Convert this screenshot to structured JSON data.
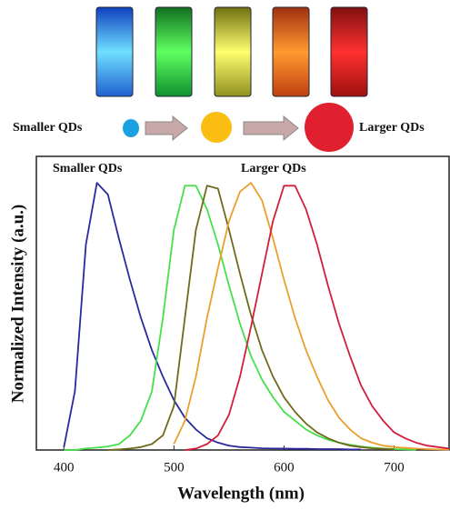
{
  "schematic": {
    "left_label": "Smaller QDs",
    "right_label": "Larger QDs"
  },
  "chart_data": {
    "type": "line",
    "x_label": "Wavelength (nm)",
    "y_label": "Normalized Intensity (a.u.)",
    "annotations": [
      "Smaller QDs",
      "Larger QDs"
    ],
    "xlim": [
      375,
      750
    ],
    "ylim": [
      0,
      1
    ],
    "xticks": [
      400,
      500,
      600,
      700
    ],
    "grid": false,
    "x": [
      390,
      400,
      410,
      420,
      430,
      440,
      450,
      460,
      470,
      480,
      490,
      500,
      510,
      520,
      530,
      540,
      550,
      560,
      570,
      580,
      590,
      600,
      610,
      620,
      630,
      640,
      650,
      660,
      670,
      680,
      690,
      700,
      710,
      720,
      730,
      740,
      750
    ],
    "series": [
      {
        "color": "#2b2a9c",
        "values": [
          null,
          0.01,
          0.2,
          0.7,
          0.91,
          0.87,
          0.72,
          0.58,
          0.45,
          0.34,
          0.25,
          0.17,
          0.11,
          0.07,
          0.04,
          0.025,
          0.015,
          0.01,
          0.008,
          0.006,
          0.005,
          0.005,
          0.004,
          0.004,
          0.003,
          0.003,
          0.003,
          0.002,
          0.002,
          null,
          null,
          null,
          null,
          null,
          null,
          null,
          null
        ]
      },
      {
        "color": "#45e04a",
        "values": [
          null,
          0,
          0,
          0.005,
          0.008,
          0.012,
          0.02,
          0.05,
          0.1,
          0.2,
          0.45,
          0.75,
          0.9,
          0.9,
          0.82,
          0.7,
          0.56,
          0.43,
          0.32,
          0.24,
          0.18,
          0.13,
          0.1,
          0.07,
          0.05,
          0.035,
          0.025,
          0.018,
          0.012,
          0.008,
          0.005,
          0.003,
          0.002,
          0.001,
          null,
          null,
          null
        ]
      },
      {
        "color": "#6e6a1c",
        "values": [
          null,
          null,
          null,
          null,
          null,
          0,
          0.002,
          0.005,
          0.01,
          0.02,
          0.05,
          0.15,
          0.45,
          0.75,
          0.9,
          0.89,
          0.75,
          0.6,
          0.46,
          0.34,
          0.25,
          0.18,
          0.13,
          0.09,
          0.06,
          0.04,
          0.025,
          0.015,
          0.01,
          0.006,
          0.004,
          0.002,
          null,
          null,
          null,
          null,
          null
        ]
      },
      {
        "color": "#eb9f2e",
        "values": [
          null,
          null,
          null,
          null,
          null,
          null,
          null,
          null,
          null,
          null,
          null,
          0.02,
          0.1,
          0.25,
          0.45,
          0.62,
          0.78,
          0.88,
          0.91,
          0.85,
          0.72,
          0.58,
          0.45,
          0.34,
          0.25,
          0.17,
          0.11,
          0.07,
          0.04,
          0.025,
          0.015,
          0.01,
          0.007,
          0.005,
          0.003,
          0.002,
          0.001
        ]
      },
      {
        "color": "#d21f3e",
        "values": [
          null,
          null,
          null,
          null,
          null,
          null,
          null,
          null,
          null,
          null,
          null,
          null,
          0,
          0.005,
          0.02,
          0.05,
          0.12,
          0.25,
          0.42,
          0.6,
          0.78,
          0.9,
          0.9,
          0.82,
          0.7,
          0.56,
          0.43,
          0.32,
          0.22,
          0.15,
          0.1,
          0.06,
          0.04,
          0.025,
          0.015,
          0.01,
          0.005
        ]
      }
    ]
  }
}
